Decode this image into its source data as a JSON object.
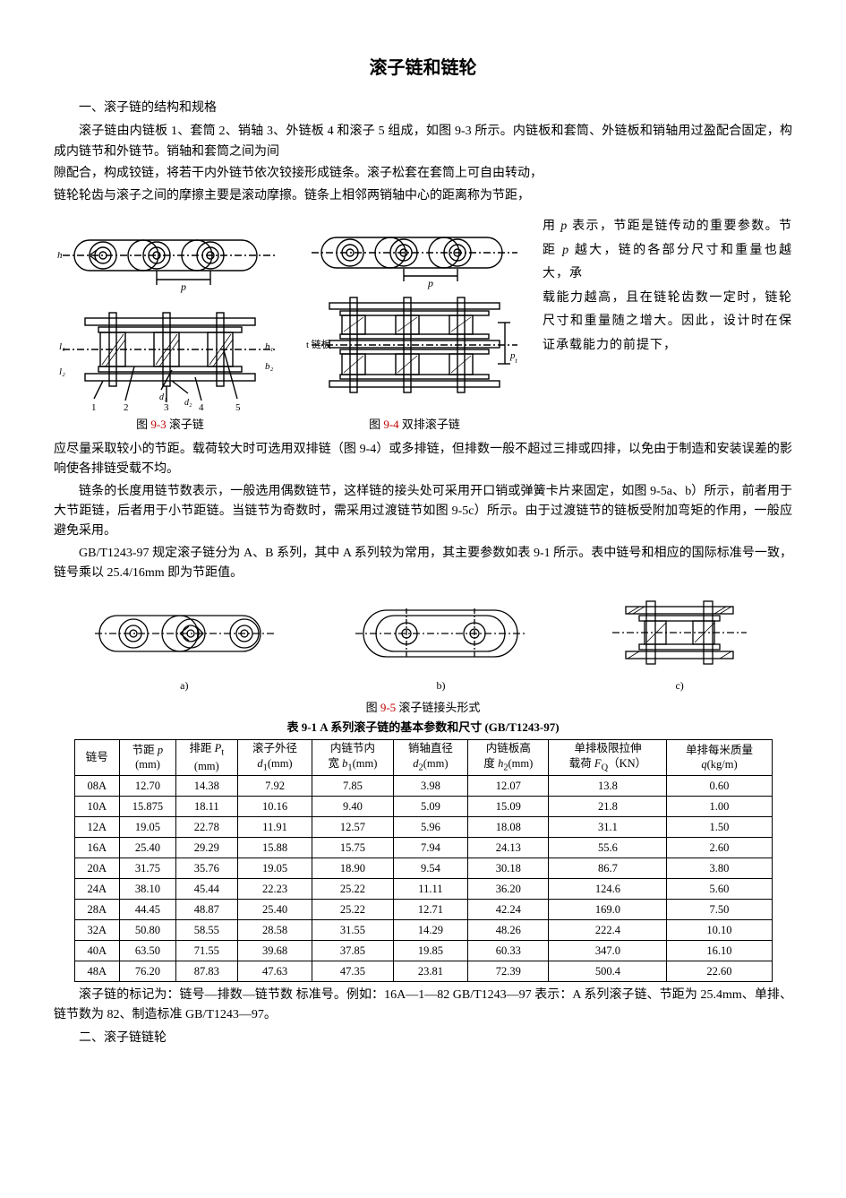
{
  "title": "滚子链和链轮",
  "section1_heading": "一、滚子链的结构和规格",
  "para1": "滚子链由内链板 1、套筒 2、销轴 3、外链板 4 和滚子 5 组成，如图 9-3 所示。内链板和套筒、外链板和销轴用过盈配合固定，构成内链节和外链节。销轴和套筒之间为间",
  "para2": "隙配合，构成铰链，将若干内外链节依次铰接形成链条。滚子松套在套筒上可自由转动，",
  "para3": "链轮轮齿与滚子之间的摩擦主要是滚动摩擦。链条上相邻两销轴中心的距离称为节距，",
  "side_text_parts": {
    "a": "用 ",
    "p1": "p",
    "b": " 表示，节距是链传动的重要参数。节距 ",
    "p2": "p",
    "c": " 越大，链的各部分尺寸和重量也越大，承",
    "d": "载能力越高，且在链轮齿数一定时，链轮尺寸和重量随之增大。因此，设计时在保证承载能力的前提下，"
  },
  "fig93_caption_prefix": "图 ",
  "fig93_num": "9-3",
  "fig93_caption_text": " 滚子链",
  "fig94_caption_prefix": "图 ",
  "fig94_num": "9-4",
  "fig94_caption_text": "  双排滚子链",
  "para4": "应尽量采取较小的节距。载荷较大时可选用双排链（图 9-4）或多排链，但排数一般不超过三排或四排，以免由于制造和安装误差的影响使各排链受载不均。",
  "para5": "链条的长度用链节数表示，一般选用偶数链节，这样链的接头处可采用开口销或弹簧卡片来固定，如图 9-5a、b）所示，前者用于大节距链，后者用于小节距链。当链节为奇数时，需采用过渡链节如图 9-5c）所示。由于过渡链节的链板受附加弯矩的作用，一般应避免采用。",
  "para6": "GB/T1243-97 规定滚子链分为 A、B 系列，其中 A 系列较为常用，其主要参数如表 9-1 所示。表中链号和相应的国际标准号一致，链号乘以 25.4/16mm 即为节距值。",
  "fig95_caption_prefix": "图 ",
  "fig95_num": "9-5",
  "fig95_caption_text": "  滚子链接头形式",
  "sub_a": "a)",
  "sub_b": "b)",
  "sub_c": "c)",
  "table_title": "表 9-1 A 系列滚子链的基本参数和尺寸 (GB/T1243-97)",
  "table": {
    "headers": [
      "链号",
      "节距 <span class='sub-i'>p</span><br>(mm)",
      "排距 <span class='sub-i'>P</span><sub>t</sub><br>(mm)",
      "滚子外径<br><span class='sub-i'>d</span><sub>1</sub>(mm)",
      "内链节内<br>宽 <span class='sub-i'>b</span><sub>1</sub>(mm)",
      "销轴直径<br><span class='sub-i'>d</span><sub>2</sub>(mm)",
      "内链板高<br>度 <span class='sub-i'>h</span><sub>2</sub>(mm)",
      "单排极限拉伸<br>载荷 <span class='sub-i'>F</span><sub>Q</sub>（KN）",
      "单排每米质量<br><span class='sub-i'>q</span>(kg/m)"
    ],
    "rows": [
      [
        "08A",
        "12.70",
        "14.38",
        "7.92",
        "7.85",
        "3.98",
        "12.07",
        "13.8",
        "0.60"
      ],
      [
        "10A",
        "15.875",
        "18.11",
        "10.16",
        "9.40",
        "5.09",
        "15.09",
        "21.8",
        "1.00"
      ],
      [
        "12A",
        "19.05",
        "22.78",
        "11.91",
        "12.57",
        "5.96",
        "18.08",
        "31.1",
        "1.50"
      ],
      [
        "16A",
        "25.40",
        "29.29",
        "15.88",
        "15.75",
        "7.94",
        "24.13",
        "55.6",
        "2.60"
      ],
      [
        "20A",
        "31.75",
        "35.76",
        "19.05",
        "18.90",
        "9.54",
        "30.18",
        "86.7",
        "3.80"
      ],
      [
        "24A",
        "38.10",
        "45.44",
        "22.23",
        "25.22",
        "11.11",
        "36.20",
        "124.6",
        "5.60"
      ],
      [
        "28A",
        "44.45",
        "48.87",
        "25.40",
        "25.22",
        "12.71",
        "42.24",
        "169.0",
        "7.50"
      ],
      [
        "32A",
        "50.80",
        "58.55",
        "28.58",
        "31.55",
        "14.29",
        "48.26",
        "222.4",
        "10.10"
      ],
      [
        "40A",
        "63.50",
        "71.55",
        "39.68",
        "37.85",
        "19.85",
        "60.33",
        "347.0",
        "16.10"
      ],
      [
        "48A",
        "76.20",
        "87.83",
        "47.63",
        "47.35",
        "23.81",
        "72.39",
        "500.4",
        "22.60"
      ]
    ]
  },
  "para7": "滚子链的标记为：链号—排数—链节数  标准号。例如：16A—1—82  GB/T1243—97 表示：A 系列滚子链、节距为 25.4mm、单排、链节数为 82、制造标准 GB/T1243—97。",
  "section2_heading": "二、滚子链链轮",
  "fig93_label_p": "p",
  "fig94_label_p": "p",
  "fig94_label_lianban": "t 链板",
  "colors": {
    "text": "#000000",
    "accent": "#c00000",
    "line": "#000000",
    "bg": "#ffffff"
  }
}
